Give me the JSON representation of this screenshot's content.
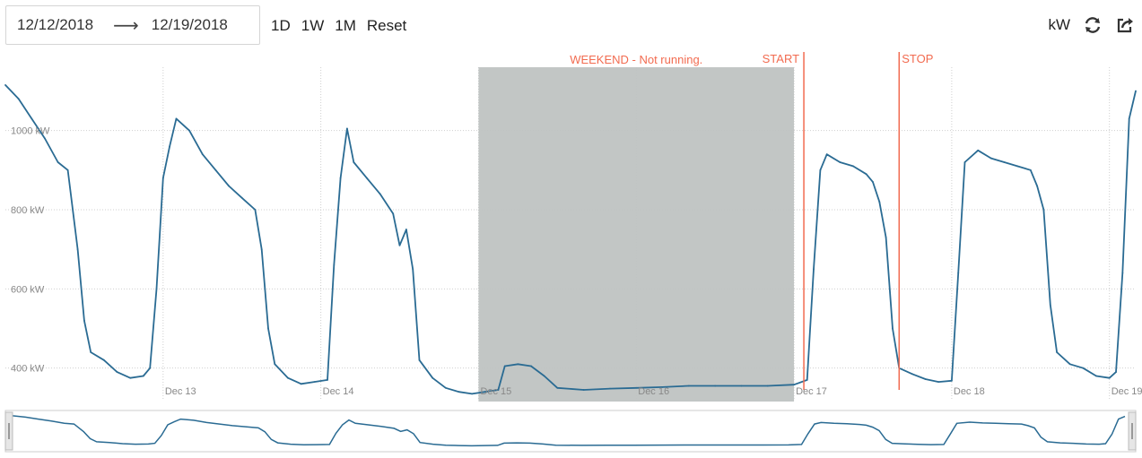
{
  "toolbar": {
    "start_date": "12/12/2018",
    "arrow": "⟶",
    "end_date": "12/19/2018",
    "range_buttons": [
      "1D",
      "1W",
      "1M",
      "Reset"
    ],
    "unit_label": "kW",
    "refresh_icon": "refresh-icon",
    "share_icon": "share-icon"
  },
  "chart_data": {
    "type": "line",
    "title": "",
    "xlabel": "",
    "ylabel": "",
    "x_ticks": [
      "Dec 13",
      "Dec 14",
      "Dec 15",
      "Dec 16",
      "Dec 17",
      "Dec 18",
      "Dec 19"
    ],
    "y_ticks": [
      "400 kW",
      "600 kW",
      "800 kW",
      "1000 kW"
    ],
    "ylim": [
      320,
      1160
    ],
    "xlim": [
      "2018-12-12 00:00",
      "2018-12-19 04:00"
    ],
    "grid": true,
    "line_color": "#2a6b93",
    "band_color": "#bfc3c2",
    "annotation_color": "#f26b50",
    "series": [
      {
        "points": [
          [
            "2018-12-12 00:00",
            1115
          ],
          [
            "2018-12-12 02:00",
            1080
          ],
          [
            "2018-12-12 04:00",
            1030
          ],
          [
            "2018-12-12 06:00",
            980
          ],
          [
            "2018-12-12 08:00",
            920
          ],
          [
            "2018-12-12 09:30",
            900
          ],
          [
            "2018-12-12 11:00",
            700
          ],
          [
            "2018-12-12 12:00",
            520
          ],
          [
            "2018-12-12 13:00",
            440
          ],
          [
            "2018-12-12 15:00",
            420
          ],
          [
            "2018-12-12 17:00",
            390
          ],
          [
            "2018-12-12 19:00",
            375
          ],
          [
            "2018-12-12 21:00",
            380
          ],
          [
            "2018-12-12 22:00",
            400
          ],
          [
            "2018-12-12 23:00",
            600
          ],
          [
            "2018-12-13 00:00",
            880
          ],
          [
            "2018-12-13 01:00",
            960
          ],
          [
            "2018-12-13 02:00",
            1030
          ],
          [
            "2018-12-13 04:00",
            1000
          ],
          [
            "2018-12-13 06:00",
            940
          ],
          [
            "2018-12-13 08:00",
            900
          ],
          [
            "2018-12-13 10:00",
            860
          ],
          [
            "2018-12-13 12:00",
            830
          ],
          [
            "2018-12-13 14:00",
            800
          ],
          [
            "2018-12-13 15:00",
            700
          ],
          [
            "2018-12-13 16:00",
            500
          ],
          [
            "2018-12-13 17:00",
            410
          ],
          [
            "2018-12-13 19:00",
            375
          ],
          [
            "2018-12-13 21:00",
            360
          ],
          [
            "2018-12-13 23:00",
            365
          ],
          [
            "2018-12-14 01:00",
            370
          ],
          [
            "2018-12-14 02:00",
            660
          ],
          [
            "2018-12-14 03:00",
            880
          ],
          [
            "2018-12-14 04:00",
            1005
          ],
          [
            "2018-12-14 05:00",
            920
          ],
          [
            "2018-12-14 07:00",
            880
          ],
          [
            "2018-12-14 09:00",
            840
          ],
          [
            "2018-12-14 11:00",
            790
          ],
          [
            "2018-12-14 12:00",
            710
          ],
          [
            "2018-12-14 13:00",
            750
          ],
          [
            "2018-12-14 14:00",
            650
          ],
          [
            "2018-12-14 15:00",
            420
          ],
          [
            "2018-12-14 17:00",
            375
          ],
          [
            "2018-12-14 19:00",
            350
          ],
          [
            "2018-12-14 21:00",
            340
          ],
          [
            "2018-12-14 23:00",
            335
          ],
          [
            "2018-12-15 01:00",
            340
          ],
          [
            "2018-12-15 03:00",
            345
          ],
          [
            "2018-12-15 04:00",
            405
          ],
          [
            "2018-12-15 06:00",
            410
          ],
          [
            "2018-12-15 08:00",
            405
          ],
          [
            "2018-12-15 10:00",
            380
          ],
          [
            "2018-12-15 12:00",
            350
          ],
          [
            "2018-12-15 16:00",
            345
          ],
          [
            "2018-12-15 20:00",
            348
          ],
          [
            "2018-12-16 00:00",
            350
          ],
          [
            "2018-12-16 04:00",
            352
          ],
          [
            "2018-12-16 08:00",
            355
          ],
          [
            "2018-12-16 12:00",
            355
          ],
          [
            "2018-12-16 16:00",
            355
          ],
          [
            "2018-12-16 20:00",
            355
          ],
          [
            "2018-12-17 00:00",
            358
          ],
          [
            "2018-12-17 02:00",
            370
          ],
          [
            "2018-12-17 03:00",
            650
          ],
          [
            "2018-12-17 04:00",
            900
          ],
          [
            "2018-12-17 05:00",
            940
          ],
          [
            "2018-12-17 07:00",
            920
          ],
          [
            "2018-12-17 09:00",
            910
          ],
          [
            "2018-12-17 11:00",
            890
          ],
          [
            "2018-12-17 12:00",
            870
          ],
          [
            "2018-12-17 13:00",
            820
          ],
          [
            "2018-12-17 14:00",
            730
          ],
          [
            "2018-12-17 15:00",
            500
          ],
          [
            "2018-12-17 16:00",
            400
          ],
          [
            "2018-12-17 18:00",
            385
          ],
          [
            "2018-12-17 20:00",
            372
          ],
          [
            "2018-12-17 22:00",
            365
          ],
          [
            "2018-12-18 00:00",
            368
          ],
          [
            "2018-12-18 01:00",
            640
          ],
          [
            "2018-12-18 02:00",
            920
          ],
          [
            "2018-12-18 04:00",
            950
          ],
          [
            "2018-12-18 06:00",
            930
          ],
          [
            "2018-12-18 08:00",
            920
          ],
          [
            "2018-12-18 10:00",
            910
          ],
          [
            "2018-12-18 12:00",
            900
          ],
          [
            "2018-12-18 13:00",
            860
          ],
          [
            "2018-12-18 14:00",
            800
          ],
          [
            "2018-12-18 15:00",
            560
          ],
          [
            "2018-12-18 16:00",
            440
          ],
          [
            "2018-12-18 18:00",
            410
          ],
          [
            "2018-12-18 20:00",
            400
          ],
          [
            "2018-12-18 22:00",
            380
          ],
          [
            "2018-12-19 00:00",
            375
          ],
          [
            "2018-12-19 01:00",
            390
          ],
          [
            "2018-12-19 02:00",
            640
          ],
          [
            "2018-12-19 03:00",
            1030
          ],
          [
            "2018-12-19 04:00",
            1100
          ]
        ]
      }
    ],
    "band": {
      "from": "2018-12-15 00:00",
      "to": "2018-12-17 00:00",
      "label": "WEEKEND - Not running."
    },
    "markers": [
      {
        "at": "2018-12-17 01:30",
        "label": "START"
      },
      {
        "at": "2018-12-17 16:00",
        "label": "STOP"
      }
    ]
  },
  "navigator": {
    "left_handle": "drag-handle",
    "right_handle": "drag-handle"
  }
}
